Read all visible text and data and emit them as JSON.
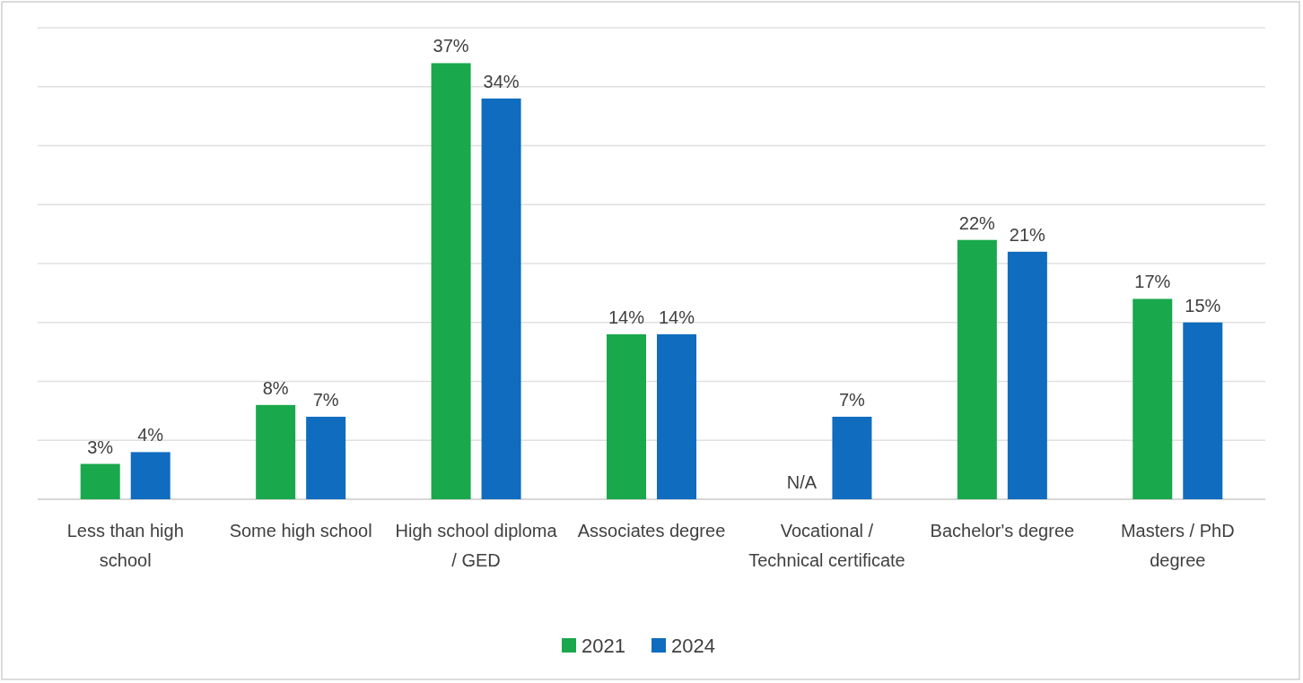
{
  "chart_data": {
    "type": "bar",
    "categories": [
      "Less than high school",
      "Some high school",
      "High school diploma / GED",
      "Associates degree",
      "Vocational / Technical certificate",
      "Bachelor's degree",
      "Masters / PhD degree"
    ],
    "series": [
      {
        "name": "2021",
        "color": "#1aa84c",
        "values": [
          3,
          8,
          37,
          14,
          null,
          22,
          17
        ],
        "value_labels": [
          "3%",
          "8%",
          "37%",
          "14%",
          "N/A",
          "22%",
          "17%"
        ]
      },
      {
        "name": "2024",
        "color": "#0f6cbf",
        "values": [
          4,
          7,
          34,
          14,
          7,
          21,
          15
        ],
        "value_labels": [
          "4%",
          "7%",
          "34%",
          "14%",
          "7%",
          "21%",
          "15%"
        ]
      }
    ],
    "ylim": [
      0,
      40
    ],
    "yticks": [
      {
        "value": 0,
        "label": null
      },
      {
        "value": 5,
        "label": null
      },
      {
        "value": 10,
        "label": null
      },
      {
        "value": 15,
        "label": null
      },
      {
        "value": 20,
        "label": null
      },
      {
        "value": 25,
        "label": null
      },
      {
        "value": 30,
        "label": null
      },
      {
        "value": 35,
        "label": null
      },
      {
        "value": 40,
        "label": null
      }
    ],
    "tick_labels": "x",
    "grid": "y",
    "legend": "bottom"
  }
}
